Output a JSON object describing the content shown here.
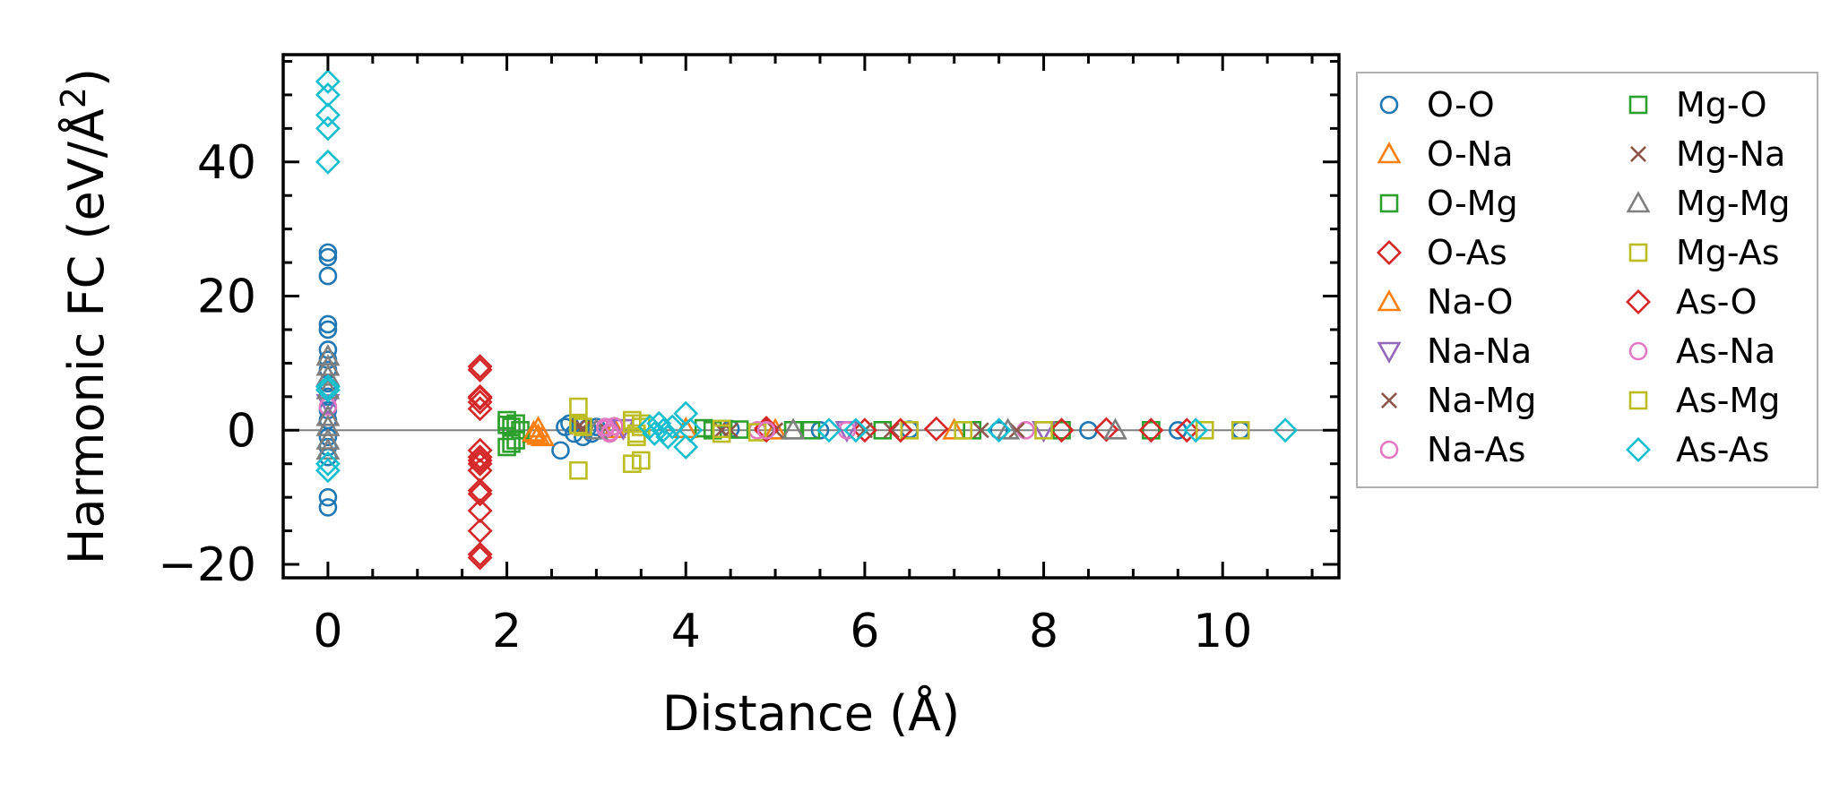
{
  "chart_data": {
    "type": "scatter",
    "title": "",
    "xlabel": "Distance (Å)",
    "ylabel_main": "Harmonic FC (eV/Å",
    "ylabel_sup": "2",
    "ylabel_close": ")",
    "xlim": [
      -0.5,
      11.3
    ],
    "ylim": [
      -22,
      56
    ],
    "xticks": [
      0,
      2,
      4,
      6,
      8,
      10
    ],
    "yticks": [
      -20,
      0,
      20,
      40
    ],
    "xtick_labels": [
      "0",
      "2",
      "4",
      "6",
      "8",
      "10"
    ],
    "ytick_labels": [
      "−20",
      "0",
      "20",
      "40"
    ],
    "legend_position": "outside-right",
    "series": [
      {
        "name": "O-O",
        "color": "#1f77b4",
        "marker": "circle",
        "points": [
          [
            0,
            26.5
          ],
          [
            0,
            25.8
          ],
          [
            0,
            23
          ],
          [
            0,
            15.8
          ],
          [
            0,
            15
          ],
          [
            0,
            12
          ],
          [
            0,
            10.5
          ],
          [
            0,
            9
          ],
          [
            0,
            7
          ],
          [
            0,
            5
          ],
          [
            0,
            3
          ],
          [
            0,
            1.5
          ],
          [
            0,
            -1
          ],
          [
            0,
            -2.5
          ],
          [
            0,
            -4
          ],
          [
            0,
            -10
          ],
          [
            0,
            -11.5
          ],
          [
            2.6,
            -3
          ],
          [
            2.65,
            0.5
          ],
          [
            2.7,
            1
          ],
          [
            2.75,
            -0.5
          ],
          [
            2.8,
            0.8
          ],
          [
            2.85,
            -1
          ],
          [
            2.9,
            0.3
          ],
          [
            2.95,
            -0.5
          ],
          [
            3.0,
            0.5
          ],
          [
            4.5,
            0.2
          ],
          [
            5.5,
            0
          ],
          [
            6.5,
            0.1
          ],
          [
            7.5,
            0
          ],
          [
            8.5,
            0
          ],
          [
            9.5,
            0
          ],
          [
            10.2,
            0
          ]
        ]
      },
      {
        "name": "O-Na",
        "color": "#ff7f0e",
        "marker": "triangle-up",
        "points": [
          [
            2.3,
            -0.5
          ],
          [
            2.35,
            0.3
          ],
          [
            2.4,
            -1
          ],
          [
            3.2,
            0.2
          ],
          [
            5.0,
            0
          ],
          [
            7.0,
            0
          ]
        ]
      },
      {
        "name": "O-Mg",
        "color": "#2ca02c",
        "marker": "square",
        "points": [
          [
            2.0,
            1.5
          ],
          [
            2.0,
            -2.5
          ],
          [
            2.05,
            0.5
          ],
          [
            2.1,
            -1.5
          ],
          [
            2.15,
            0
          ],
          [
            4.2,
            0.3
          ],
          [
            4.6,
            0.1
          ],
          [
            5.2,
            0
          ],
          [
            6.2,
            0
          ],
          [
            7.2,
            0
          ],
          [
            8.2,
            0
          ],
          [
            9.2,
            0
          ]
        ]
      },
      {
        "name": "O-As",
        "color": "#d62728",
        "marker": "diamond",
        "points": [
          [
            1.7,
            9.5
          ],
          [
            1.7,
            9
          ],
          [
            1.7,
            5
          ],
          [
            1.7,
            4.2
          ],
          [
            1.7,
            3.2
          ],
          [
            1.7,
            -3
          ],
          [
            1.7,
            -4
          ],
          [
            1.7,
            -5
          ],
          [
            1.7,
            -6
          ],
          [
            1.7,
            -9
          ],
          [
            1.7,
            -9.5
          ],
          [
            1.7,
            -12
          ],
          [
            1.7,
            -15
          ],
          [
            1.7,
            -18.5
          ],
          [
            1.7,
            -19
          ],
          [
            4.9,
            0.3
          ],
          [
            6.0,
            0
          ],
          [
            6.8,
            0.2
          ],
          [
            8.2,
            0
          ],
          [
            8.7,
            0.1
          ],
          [
            9.2,
            0
          ],
          [
            9.6,
            0
          ]
        ]
      },
      {
        "name": "Na-O",
        "color": "#ff7f0e",
        "marker": "triangle-up",
        "points": [
          [
            2.3,
            -0.3
          ],
          [
            2.35,
            -0.8
          ],
          [
            4.0,
            0.2
          ]
        ]
      },
      {
        "name": "Na-Na",
        "color": "#9467bd",
        "marker": "triangle-down",
        "points": [
          [
            0,
            4
          ],
          [
            3.3,
            0.3
          ],
          [
            5.8,
            0
          ],
          [
            8.0,
            0
          ]
        ]
      },
      {
        "name": "Na-Mg",
        "color": "#8c564b",
        "marker": "x",
        "points": [
          [
            2.8,
            0.5
          ],
          [
            3.1,
            0.2
          ],
          [
            4.5,
            0
          ],
          [
            5.0,
            0
          ],
          [
            6.0,
            0
          ],
          [
            7.3,
            0
          ]
        ]
      },
      {
        "name": "Na-As",
        "color": "#e377c2",
        "marker": "circle",
        "points": [
          [
            0,
            3.5
          ],
          [
            3.1,
            0.2
          ],
          [
            3.15,
            -0.3
          ],
          [
            3.2,
            0.6
          ],
          [
            4.8,
            0
          ],
          [
            7.8,
            0
          ]
        ]
      },
      {
        "name": "Mg-O",
        "color": "#2ca02c",
        "marker": "square",
        "points": [
          [
            2.0,
            0.8
          ],
          [
            2.05,
            -2
          ],
          [
            2.1,
            1
          ],
          [
            4.3,
            0
          ],
          [
            5.4,
            0
          ]
        ]
      },
      {
        "name": "Mg-Na",
        "color": "#8c564b",
        "marker": "x",
        "points": [
          [
            2.85,
            0.3
          ],
          [
            4.4,
            0
          ],
          [
            6.3,
            0
          ],
          [
            7.7,
            0
          ]
        ]
      },
      {
        "name": "Mg-Mg",
        "color": "#7f7f7f",
        "marker": "triangle-up",
        "points": [
          [
            0,
            11
          ],
          [
            0,
            9.5
          ],
          [
            0,
            8
          ],
          [
            0,
            6
          ],
          [
            0,
            2
          ],
          [
            0,
            0.5
          ],
          [
            0,
            -1.5
          ],
          [
            0,
            -3
          ],
          [
            3.0,
            0
          ],
          [
            5.2,
            0
          ],
          [
            7.6,
            0
          ],
          [
            8.8,
            0
          ]
        ]
      },
      {
        "name": "Mg-As",
        "color": "#bcbd22",
        "marker": "square",
        "points": [
          [
            2.8,
            3.5
          ],
          [
            2.8,
            -6
          ],
          [
            2.85,
            0.5
          ],
          [
            3.4,
            1
          ],
          [
            3.45,
            -1
          ],
          [
            3.5,
            0.5
          ],
          [
            4.4,
            0.2
          ],
          [
            4.8,
            -0.3
          ],
          [
            6.5,
            0
          ],
          [
            7.1,
            0
          ],
          [
            8.0,
            0
          ],
          [
            9.8,
            0
          ]
        ]
      },
      {
        "name": "As-O",
        "color": "#d62728",
        "marker": "diamond",
        "points": [
          [
            1.7,
            4.8
          ],
          [
            1.7,
            -4.5
          ],
          [
            4.9,
            0
          ],
          [
            6.4,
            0
          ]
        ]
      },
      {
        "name": "As-Na",
        "color": "#e377c2",
        "marker": "circle",
        "points": [
          [
            3.1,
            0.5
          ],
          [
            3.15,
            -0.5
          ],
          [
            4.9,
            0
          ],
          [
            5.8,
            0
          ]
        ]
      },
      {
        "name": "As-Mg",
        "color": "#bcbd22",
        "marker": "square",
        "points": [
          [
            2.8,
            0.8
          ],
          [
            3.4,
            1.5
          ],
          [
            3.45,
            -0.5
          ],
          [
            3.5,
            -4.5
          ],
          [
            3.4,
            -5
          ],
          [
            3.5,
            1
          ],
          [
            4.4,
            -0.5
          ],
          [
            10.2,
            0
          ]
        ]
      },
      {
        "name": "As-As",
        "color": "#17becf",
        "marker": "diamond",
        "points": [
          [
            0,
            52
          ],
          [
            0,
            50
          ],
          [
            0,
            47
          ],
          [
            0,
            45
          ],
          [
            0,
            40
          ],
          [
            0,
            6.5
          ],
          [
            0,
            6
          ],
          [
            0,
            -5
          ],
          [
            0,
            -6
          ],
          [
            3.6,
            0.5
          ],
          [
            3.65,
            -0.5
          ],
          [
            3.7,
            1
          ],
          [
            3.75,
            0
          ],
          [
            3.8,
            -1
          ],
          [
            3.85,
            0.5
          ],
          [
            4.0,
            2.5
          ],
          [
            4.0,
            -2.5
          ],
          [
            4.05,
            0
          ],
          [
            5.6,
            0
          ],
          [
            5.9,
            0
          ],
          [
            7.5,
            0
          ],
          [
            9.7,
            0
          ],
          [
            10.7,
            0
          ]
        ]
      }
    ]
  }
}
